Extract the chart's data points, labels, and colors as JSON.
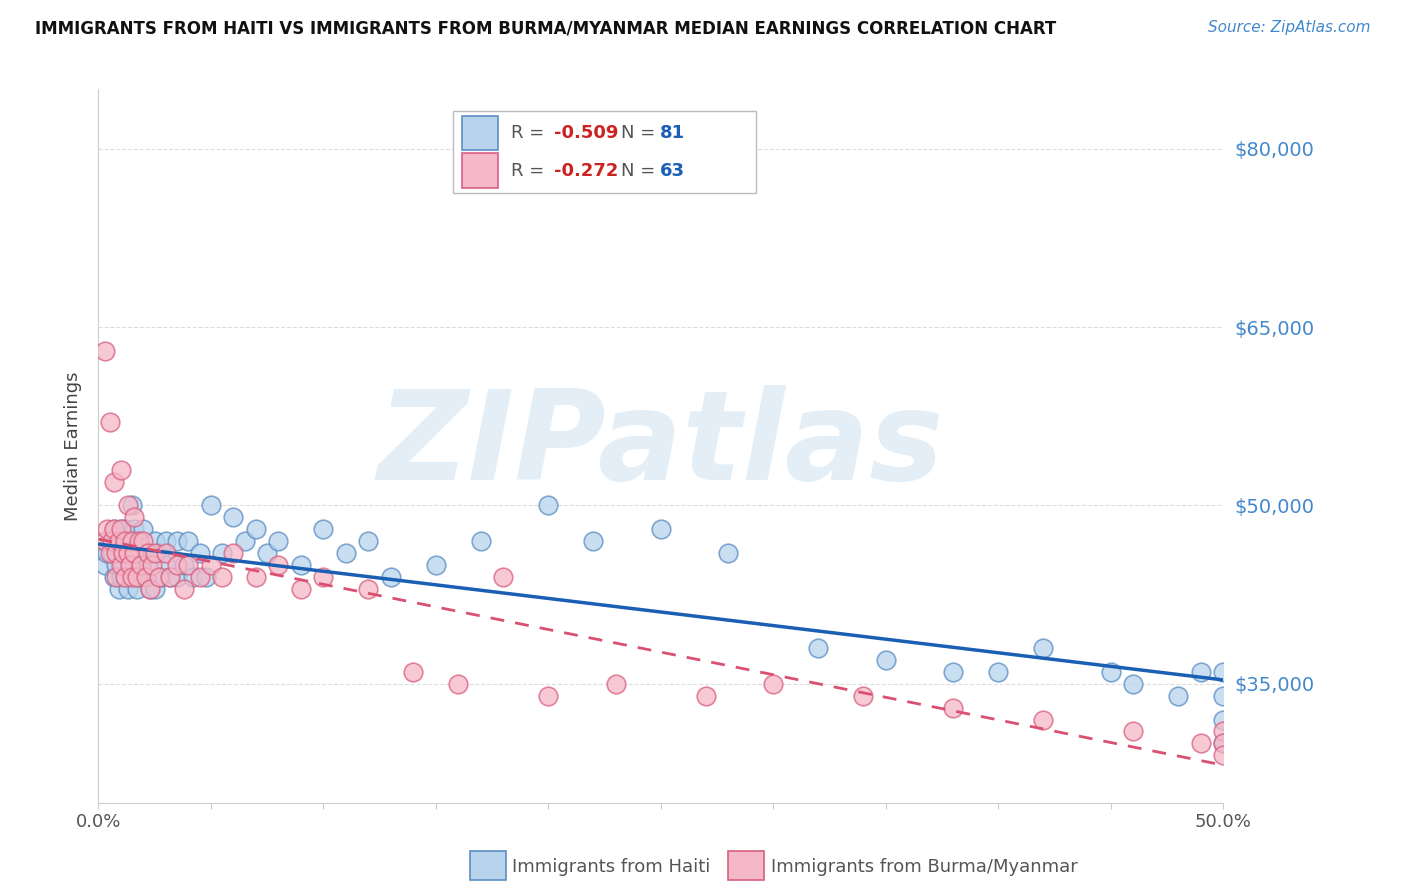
{
  "title": "IMMIGRANTS FROM HAITI VS IMMIGRANTS FROM BURMA/MYANMAR MEDIAN EARNINGS CORRELATION CHART",
  "source": "Source: ZipAtlas.com",
  "ylabel": "Median Earnings",
  "y_ticks": [
    35000,
    50000,
    65000,
    80000
  ],
  "y_tick_labels": [
    "$35,000",
    "$50,000",
    "$65,000",
    "$80,000"
  ],
  "x_min": 0.0,
  "x_max": 0.5,
  "y_min": 25000,
  "y_max": 85000,
  "haiti_color": "#b8d4ec",
  "haiti_edge_color": "#5b8ec4",
  "burma_color": "#f5b8c8",
  "burma_edge_color": "#d96080",
  "haiti_trend_color": "#1a5fb4",
  "burma_trend_color": "#d95070",
  "haiti_R": -0.509,
  "haiti_N": 81,
  "burma_R": -0.272,
  "burma_N": 63,
  "legend_label_haiti": "Immigrants from Haiti",
  "legend_label_burma": "Immigrants from Burma/Myanmar",
  "watermark": "ZIPatlas",
  "watermark_color": "#c8dff0",
  "grid_color": "#dddddd",
  "axis_color": "#cccccc",
  "title_color": "#111111",
  "source_color": "#4488cc",
  "right_tick_color": "#4488cc",
  "haiti_scatter_x": [
    0.003,
    0.004,
    0.005,
    0.006,
    0.007,
    0.007,
    0.008,
    0.008,
    0.009,
    0.009,
    0.01,
    0.01,
    0.01,
    0.011,
    0.011,
    0.012,
    0.012,
    0.013,
    0.013,
    0.014,
    0.014,
    0.015,
    0.015,
    0.015,
    0.016,
    0.016,
    0.017,
    0.017,
    0.018,
    0.018,
    0.019,
    0.02,
    0.02,
    0.021,
    0.022,
    0.023,
    0.025,
    0.025,
    0.027,
    0.028,
    0.03,
    0.03,
    0.032,
    0.035,
    0.035,
    0.038,
    0.04,
    0.042,
    0.045,
    0.048,
    0.05,
    0.055,
    0.06,
    0.065,
    0.07,
    0.075,
    0.08,
    0.09,
    0.1,
    0.11,
    0.12,
    0.13,
    0.15,
    0.17,
    0.2,
    0.22,
    0.25,
    0.28,
    0.32,
    0.35,
    0.38,
    0.4,
    0.42,
    0.45,
    0.46,
    0.48,
    0.49,
    0.5,
    0.5,
    0.5,
    0.5
  ],
  "haiti_scatter_y": [
    45000,
    46000,
    47000,
    46000,
    48000,
    44000,
    47000,
    45000,
    46000,
    43000,
    48000,
    46000,
    44000,
    47000,
    45000,
    48000,
    44000,
    46000,
    43000,
    47000,
    45000,
    50000,
    47000,
    44000,
    48000,
    45000,
    47000,
    43000,
    46000,
    44000,
    45000,
    48000,
    44000,
    46000,
    45000,
    43000,
    47000,
    43000,
    46000,
    44000,
    47000,
    45000,
    44000,
    47000,
    44000,
    45000,
    47000,
    44000,
    46000,
    44000,
    50000,
    46000,
    49000,
    47000,
    48000,
    46000,
    47000,
    45000,
    48000,
    46000,
    47000,
    44000,
    45000,
    47000,
    50000,
    47000,
    48000,
    46000,
    38000,
    37000,
    36000,
    36000,
    38000,
    36000,
    35000,
    34000,
    36000,
    32000,
    34000,
    36000,
    30000
  ],
  "burma_scatter_x": [
    0.003,
    0.004,
    0.005,
    0.006,
    0.007,
    0.008,
    0.008,
    0.009,
    0.01,
    0.01,
    0.011,
    0.012,
    0.012,
    0.013,
    0.014,
    0.015,
    0.015,
    0.016,
    0.017,
    0.018,
    0.019,
    0.02,
    0.021,
    0.022,
    0.023,
    0.024,
    0.025,
    0.027,
    0.03,
    0.032,
    0.035,
    0.038,
    0.04,
    0.045,
    0.05,
    0.055,
    0.06,
    0.07,
    0.08,
    0.09,
    0.1,
    0.12,
    0.14,
    0.16,
    0.18,
    0.2,
    0.23,
    0.27,
    0.3,
    0.34,
    0.38,
    0.42,
    0.46,
    0.49,
    0.5,
    0.5,
    0.5,
    0.003,
    0.005,
    0.007,
    0.01,
    0.013,
    0.016
  ],
  "burma_scatter_y": [
    47000,
    48000,
    46000,
    47000,
    48000,
    46000,
    44000,
    47000,
    48000,
    45000,
    46000,
    47000,
    44000,
    46000,
    45000,
    47000,
    44000,
    46000,
    44000,
    47000,
    45000,
    47000,
    44000,
    46000,
    43000,
    45000,
    46000,
    44000,
    46000,
    44000,
    45000,
    43000,
    45000,
    44000,
    45000,
    44000,
    46000,
    44000,
    45000,
    43000,
    44000,
    43000,
    36000,
    35000,
    44000,
    34000,
    35000,
    34000,
    35000,
    34000,
    33000,
    32000,
    31000,
    30000,
    31000,
    30000,
    29000,
    63000,
    57000,
    52000,
    53000,
    50000,
    49000
  ]
}
